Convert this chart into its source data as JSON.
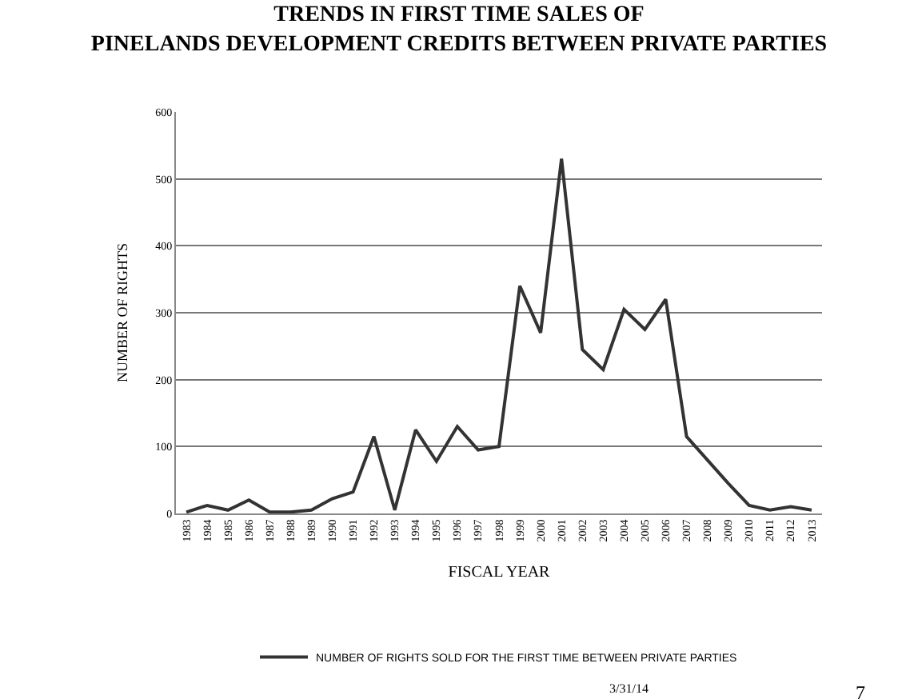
{
  "chart_data": {
    "type": "line",
    "title": "TRENDS IN FIRST TIME SALES OF\nPINELANDS DEVELOPMENT CREDITS BETWEEN PRIVATE PARTIES",
    "xlabel": "FISCAL YEAR",
    "ylabel": "NUMBER OF RIGHTS",
    "categories": [
      "1983",
      "1984",
      "1985",
      "1986",
      "1987",
      "1988",
      "1989",
      "1990",
      "1991",
      "1992",
      "1993",
      "1994",
      "1995",
      "1996",
      "1997",
      "1998",
      "1999",
      "2000",
      "2001",
      "2002",
      "2003",
      "2004",
      "2005",
      "2006",
      "2007",
      "2008",
      "2009",
      "2010",
      "2011",
      "2012",
      "2013"
    ],
    "series": [
      {
        "name": "NUMBER OF RIGHTS SOLD FOR THE FIRST TIME BETWEEN PRIVATE PARTIES",
        "color": "#333333",
        "values": [
          2,
          12,
          5,
          20,
          2,
          2,
          5,
          22,
          32,
          115,
          5,
          125,
          78,
          130,
          95,
          100,
          340,
          270,
          530,
          245,
          215,
          305,
          275,
          320,
          115,
          80,
          45,
          12,
          5,
          10,
          5
        ]
      }
    ],
    "ylim": [
      0,
      600
    ],
    "yticks": [
      0,
      100,
      200,
      300,
      400,
      500,
      600
    ],
    "grid": "y",
    "legend": "bottom",
    "marker": "none",
    "line_style": "solid",
    "annotations": [
      "3/31/14",
      "7"
    ]
  }
}
